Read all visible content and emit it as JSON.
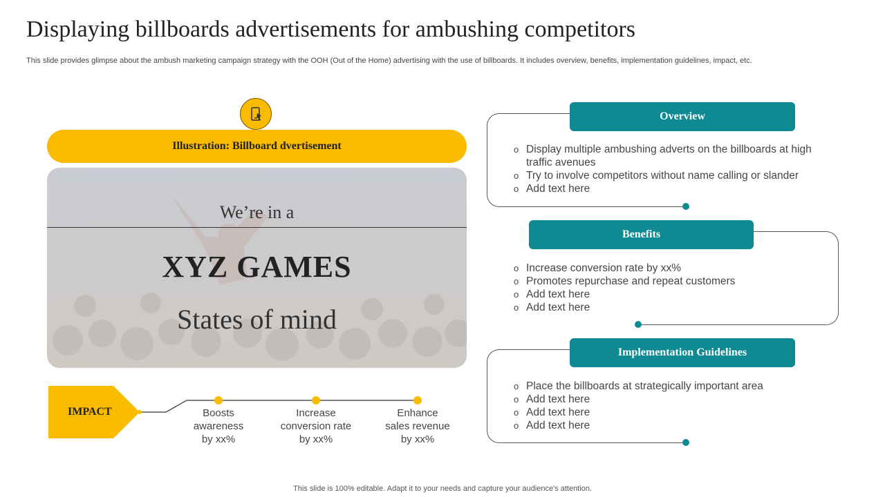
{
  "title": "Displaying billboards advertisements for ambushing competitors",
  "subtitle": "This slide provides glimpse about the ambush marketing campaign strategy with the OOH (Out of the Home) advertising with the use of billboards. It includes overview, benefits, implementation guidelines, impact, etc.",
  "illustration": {
    "label": "Illustration: Billboard dvertisement",
    "icon": "mobile-touch-icon",
    "line1": "We’re in a",
    "line2": "XYZ GAMES",
    "line3": "States of mind"
  },
  "impact": {
    "label": "IMPACT",
    "items": [
      {
        "text": "Boosts awareness by xx%",
        "lines": [
          "Boosts",
          "awareness",
          "by xx%"
        ]
      },
      {
        "text": "Increase conversion rate by xx%",
        "lines": [
          "Increase",
          "conversion rate",
          "by xx%"
        ]
      },
      {
        "text": "Enhance sales revenue by xx%",
        "lines": [
          "Enhance",
          "sales revenue",
          "by xx%"
        ]
      }
    ]
  },
  "panels": [
    {
      "title": "Overview",
      "bullets": [
        "Display multiple ambushing adverts on the billboards at high traffic avenues",
        "Try to involve competitors without name calling or slander",
        "Add text here"
      ]
    },
    {
      "title": "Benefits",
      "bullets": [
        "Increase conversion rate by xx%",
        "Promotes repurchase and repeat customers",
        "Add text here",
        "Add text here"
      ]
    },
    {
      "title": "Implementation Guidelines",
      "bullets": [
        "Place the billboards at strategically important area",
        "Add text here",
        "Add text here",
        "Add text here"
      ]
    }
  ],
  "footer": "This slide is 100% editable. Adapt it to your needs and capture your audience's attention.",
  "colors": {
    "accent_yellow": "#f9bb00",
    "accent_teal": "#0f8a92"
  }
}
